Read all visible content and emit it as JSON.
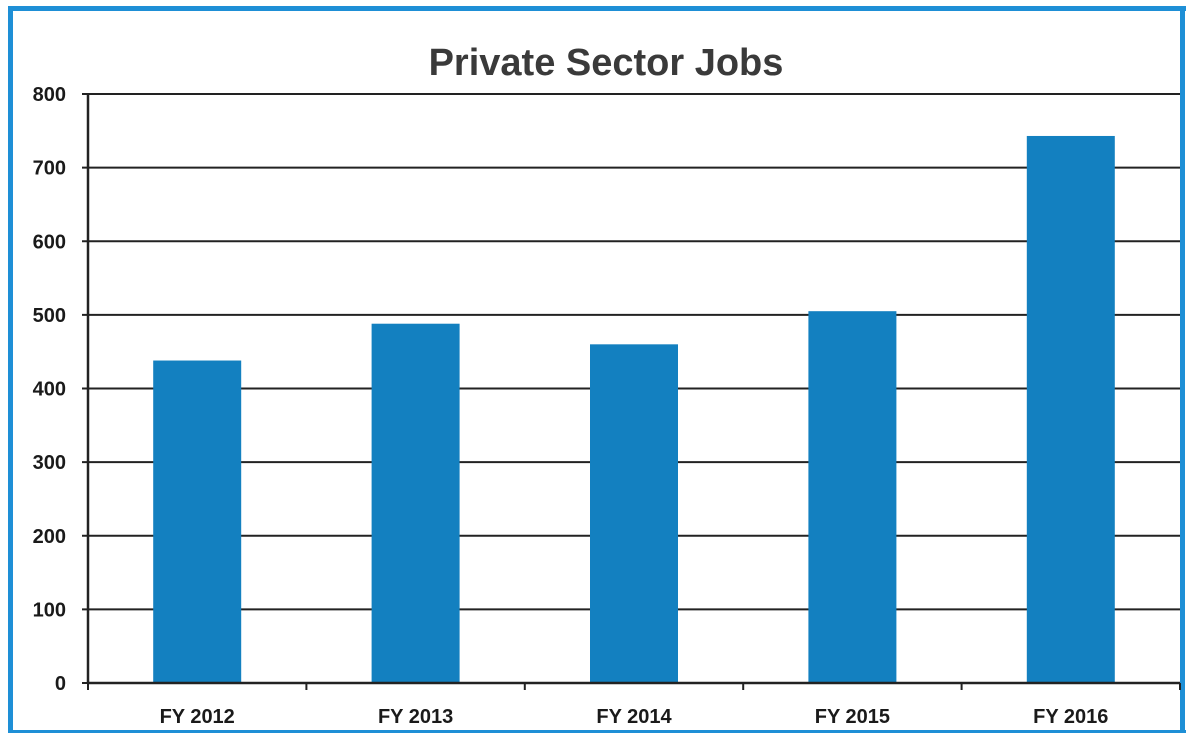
{
  "chart_data": {
    "type": "bar",
    "title": "Private Sector Jobs",
    "categories": [
      "FY 2012",
      "FY 2013",
      "FY 2014",
      "FY 2015",
      "FY 2016"
    ],
    "values": [
      438,
      488,
      460,
      505,
      743
    ],
    "ylim": [
      0,
      800
    ],
    "yticks": [
      0,
      100,
      200,
      300,
      400,
      500,
      600,
      700,
      800
    ],
    "xlabel": "",
    "ylabel": "",
    "grid": true,
    "legend": "none",
    "colors": {
      "bar": "#1380c0",
      "border": "#1e8fd6",
      "grid": "#222222"
    }
  }
}
